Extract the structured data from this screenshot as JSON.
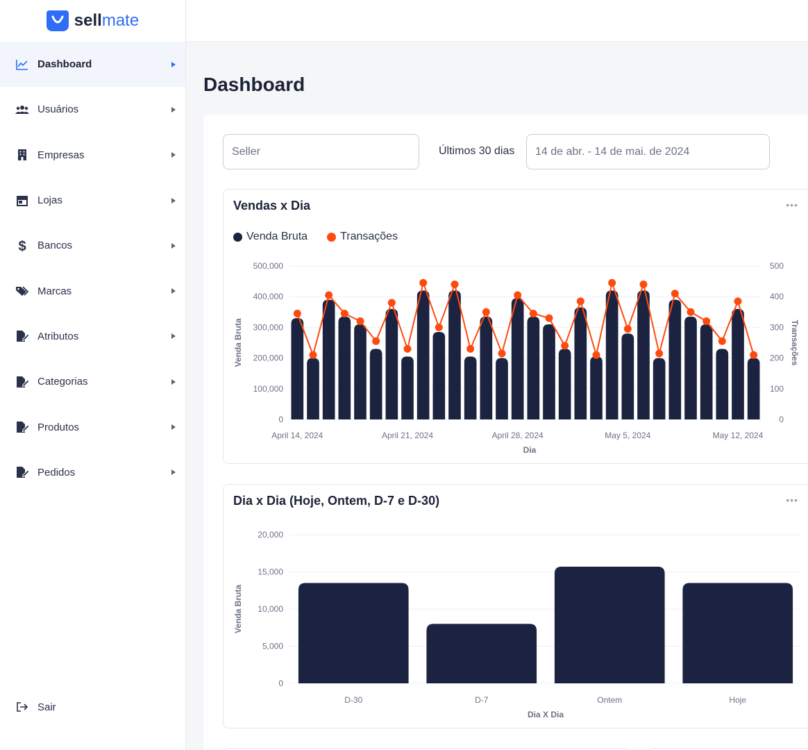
{
  "brand": {
    "name_bold": "sell",
    "name_light": "mate",
    "primary_color": "#2f6df6"
  },
  "sidebar": {
    "items": [
      {
        "label": "Dashboard",
        "icon": "chart-line-icon",
        "active": true
      },
      {
        "label": "Usuários",
        "icon": "users-icon",
        "active": false
      },
      {
        "label": "Empresas",
        "icon": "building-icon",
        "active": false
      },
      {
        "label": "Lojas",
        "icon": "store-icon",
        "active": false
      },
      {
        "label": "Bancos",
        "icon": "dollar-icon",
        "active": false
      },
      {
        "label": "Marcas",
        "icon": "tags-icon",
        "active": false
      },
      {
        "label": "Atributos",
        "icon": "file-edit-icon",
        "active": false
      },
      {
        "label": "Categorias",
        "icon": "file-edit-icon",
        "active": false
      },
      {
        "label": "Produtos",
        "icon": "file-edit-icon",
        "active": false
      },
      {
        "label": "Pedidos",
        "icon": "file-edit-icon",
        "active": false
      }
    ],
    "logout_label": "Sair"
  },
  "main": {
    "page_title": "Dashboard",
    "filters": {
      "seller_placeholder": "Seller",
      "period_label": "Últimos 30 dias",
      "date_range": "14 de abr. - 14 de mai. de 2024"
    }
  },
  "colors": {
    "bar": "#1b2340",
    "line": "#ff4a0f",
    "grid": "#eef0f3",
    "axis_text": "#6b7285"
  },
  "chart_data": [
    {
      "type": "bar",
      "title": "Vendas x Dia",
      "legend": [
        "Venda Bruta",
        "Transações"
      ],
      "xlabel": "Dia",
      "ylabel": "Venda Bruta",
      "y2label": "Transações",
      "ylim": [
        0,
        500000
      ],
      "y2lim": [
        0,
        500
      ],
      "yticks": [
        "0",
        "100,000",
        "200,000",
        "300,000",
        "400,000",
        "500,000"
      ],
      "y2ticks": [
        "0",
        "100",
        "200",
        "300",
        "400",
        "500"
      ],
      "xtick_labels": [
        {
          "index": 0,
          "label": "April 14, 2024"
        },
        {
          "index": 7,
          "label": "April 21, 2024"
        },
        {
          "index": 14,
          "label": "April 28, 2024"
        },
        {
          "index": 21,
          "label": "May 5, 2024"
        },
        {
          "index": 28,
          "label": "May 12, 2024"
        }
      ],
      "series": [
        {
          "name": "Venda Bruta",
          "type": "bar",
          "values": [
            330000,
            200000,
            390000,
            335000,
            310000,
            230000,
            360000,
            205000,
            420000,
            285000,
            420000,
            205000,
            335000,
            200000,
            395000,
            335000,
            310000,
            230000,
            365000,
            205000,
            420000,
            280000,
            420000,
            200000,
            390000,
            335000,
            310000,
            230000,
            360000,
            200000
          ]
        },
        {
          "name": "Transações",
          "type": "line",
          "values": [
            345,
            210,
            405,
            345,
            320,
            255,
            380,
            230,
            445,
            300,
            440,
            230,
            350,
            215,
            405,
            345,
            330,
            240,
            385,
            210,
            445,
            295,
            440,
            215,
            410,
            350,
            320,
            255,
            385,
            210
          ]
        }
      ]
    },
    {
      "type": "bar",
      "title": "Dia x Dia (Hoje, Ontem, D-7 e D-30)",
      "xlabel": "Dia X Dia",
      "ylabel": "Venda Bruta",
      "ylim": [
        0,
        20000
      ],
      "yticks": [
        "0",
        "5,000",
        "10,000",
        "15,000",
        "20,000"
      ],
      "categories": [
        "D-30",
        "D-7",
        "Ontem",
        "Hoje"
      ],
      "values": [
        13500,
        8000,
        15700,
        13500
      ]
    }
  ]
}
